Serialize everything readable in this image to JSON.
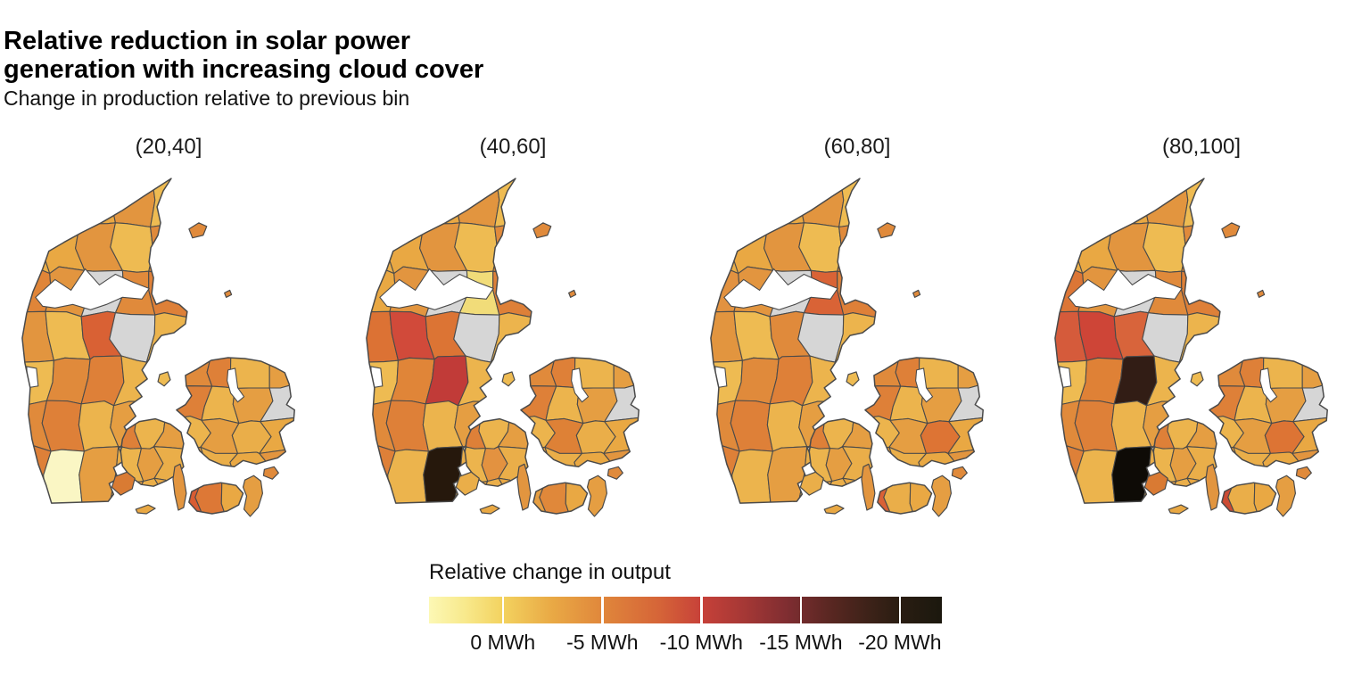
{
  "title_line1": "Relative reduction in solar power",
  "title_line2": "generation with increasing cloud cover",
  "subtitle": "Change in production relative to previous bin",
  "colors": {
    "background": "#FFFFFF",
    "border": "#4A4A4A",
    "na_fill": "#D6D6D6",
    "water": "#FFFFFF",
    "default_fills": [
      "#EAAE49",
      "#E9A843",
      "#E2953F",
      "#EEBB52",
      "#E08A3B",
      "#DE8038",
      "#ECB44D",
      "#E59E42"
    ]
  },
  "legend": {
    "title": "Relative change in output",
    "ticks": [
      {
        "label": "0 MWh",
        "pos": 0.144
      },
      {
        "label": "-5 MWh",
        "pos": 0.338
      },
      {
        "label": "-10 MWh",
        "pos": 0.531
      },
      {
        "label": "-15 MWh",
        "pos": 0.725
      },
      {
        "label": "-20 MWh",
        "pos": 0.918
      }
    ],
    "gradient": [
      {
        "frac": 0.0,
        "color": "#FCF8B5"
      },
      {
        "frac": 0.07,
        "color": "#F8E98C"
      },
      {
        "frac": 0.144,
        "color": "#F3D25F"
      },
      {
        "frac": 0.24,
        "color": "#E9A945"
      },
      {
        "frac": 0.34,
        "color": "#E0863B"
      },
      {
        "frac": 0.45,
        "color": "#D56438"
      },
      {
        "frac": 0.531,
        "color": "#C74139"
      },
      {
        "frac": 0.62,
        "color": "#A33735"
      },
      {
        "frac": 0.7,
        "color": "#7E2D31"
      },
      {
        "frac": 0.78,
        "color": "#5A2722"
      },
      {
        "frac": 0.86,
        "color": "#3C2218"
      },
      {
        "frac": 0.918,
        "color": "#2A1D12"
      },
      {
        "frac": 1.0,
        "color": "#1B180E"
      }
    ]
  },
  "facets": [
    {
      "label": "(20,40]",
      "overrides": {
        "jut-2-2": "#D6D6D6",
        "jut-3-3": "#D6D6D6",
        "zea-3-1": "#D6D6D6",
        "jut-2-3": "#D96134",
        "jut-1-6": "#FAF6C4",
        "jut-0-2": "#E08538",
        "lol-0-0": "#D85C33",
        "lol-1-0": "#DD7836",
        "als": "#D97B33"
      }
    },
    {
      "label": "(40,60]",
      "overrides": {
        "jut-2-2": "#D6D6D6",
        "jut-3-3": "#D6D6D6",
        "zea-3-1": "#D6D6D6",
        "jut-1-3": "#D14A3A",
        "jut-2-4": "#C13B38",
        "jut-2-6": "#26180C",
        "jut-3-2": "#F1DC79",
        "jut-2-3": "#DC7434",
        "jut-0-3": "#DC7234",
        "jut-1-4": "#E08538",
        "zea-1-2": "#DE8136",
        "lol-1-0": "#E0883A",
        "fun-1-1": "#E39240"
      }
    },
    {
      "label": "(60,80]",
      "overrides": {
        "jut-2-2": "#D6D6D6",
        "jut-3-3": "#D6D6D6",
        "zea-3-1": "#D6D6D6",
        "jut-3-2": "#D96336",
        "zea-2-2": "#DD7434",
        "lol-0-0": "#D96136",
        "jut-0-2": "#E29240"
      }
    },
    {
      "label": "(80,100]",
      "overrides": {
        "jut-2-2": "#D6D6D6",
        "jut-3-3": "#D6D6D6",
        "zea-3-1": "#D6D6D6",
        "jut-1-3": "#CE4537",
        "jut-0-3": "#D55B3B",
        "jut-2-3": "#D8643B",
        "jut-0-2": "#DC7636",
        "jut-1-4": "#DF8136",
        "jut-2-4": "#321D15",
        "jut-2-6": "#0E0B06",
        "lol-0-0": "#CC4B33",
        "zea-2-2": "#DD7434",
        "als": "#D97A33"
      }
    }
  ],
  "chart_data": {
    "type": "choropleth_map_small_multiples",
    "region": "Denmark municipalities",
    "title": "Relative reduction in solar power generation with increasing cloud cover",
    "subtitle": "Change in production relative to previous bin",
    "facet_variable": "cloud cover bin (%)",
    "facets": [
      "(20,40]",
      "(40,60]",
      "(60,80]",
      "(80,100]"
    ],
    "value_variable": "Relative change in output (MWh)",
    "scale": {
      "ticks_mwh": [
        0,
        -5,
        -10,
        -15,
        -20
      ],
      "palette_description": "light yellow (0 MWh) through orange and red to dark brown/black (-20 MWh and below)",
      "na_color": "#D6D6D6"
    },
    "na_regions": [
      "north Jutland (Rebild area)",
      "east Jutland (Skanderborg area)",
      "Copenhagen area"
    ],
    "notable_regions": [
      {
        "facet": "(20,40]",
        "location": "south-west Jutland (Tonder area)",
        "approx_value_mwh": 0,
        "color": "#FAF6C4"
      },
      {
        "facet": "(20,40]",
        "location": "central Jutland (Viborg area)",
        "approx_value_mwh": -7,
        "color": "#D96134"
      },
      {
        "facet": "(20,40]",
        "location": "western Lolland",
        "approx_value_mwh": -7,
        "color": "#D85C33"
      },
      {
        "facet": "(40,60]",
        "location": "north-west Jutland (Skive area)",
        "approx_value_mwh": -9,
        "color": "#D14A3A"
      },
      {
        "facet": "(40,60]",
        "location": "east Jutland (Vejle area)",
        "approx_value_mwh": -11,
        "color": "#C13B38"
      },
      {
        "facet": "(40,60]",
        "location": "south Jutland (Aabenraa area)",
        "approx_value_mwh": -21,
        "color": "#26180C"
      },
      {
        "facet": "(40,60]",
        "location": "north-east Jutland (Randers area)",
        "approx_value_mwh": -1,
        "color": "#F1DC79"
      },
      {
        "facet": "(60,80]",
        "location": "north-east Jutland (Randers area)",
        "approx_value_mwh": -7,
        "color": "#D96336"
      },
      {
        "facet": "(60,80]",
        "location": "south-east Zealand (Faxe area)",
        "approx_value_mwh": -6,
        "color": "#DD7434"
      },
      {
        "facet": "(60,80]",
        "location": "western Lolland",
        "approx_value_mwh": -7,
        "color": "#D96136"
      },
      {
        "facet": "(80,100]",
        "location": "east Jutland (Vejle area)",
        "approx_value_mwh": -19,
        "color": "#321D15"
      },
      {
        "facet": "(80,100]",
        "location": "south Jutland (Aabenraa area)",
        "approx_value_mwh": -22,
        "color": "#0E0B06"
      },
      {
        "facet": "(80,100]",
        "location": "north-west Jutland (Skive area)",
        "approx_value_mwh": -10,
        "color": "#CE4537"
      },
      {
        "facet": "(80,100]",
        "location": "western Lolland",
        "approx_value_mwh": -10,
        "color": "#CC4B33"
      }
    ]
  }
}
